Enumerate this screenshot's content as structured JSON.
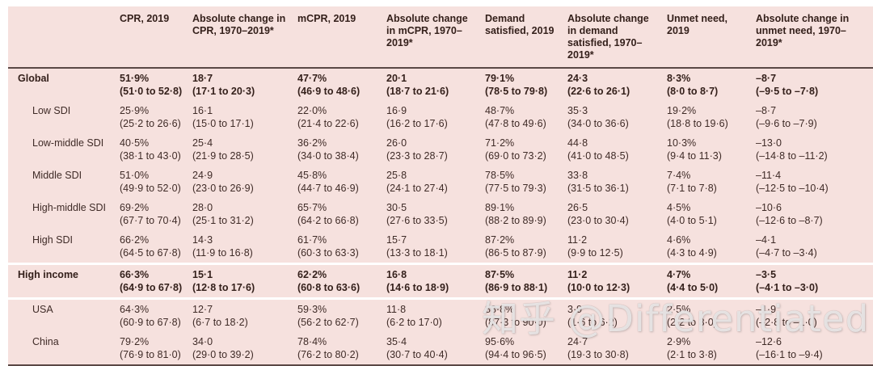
{
  "watermark": "知乎 @Differentiated",
  "table": {
    "columns": [
      {
        "label": ""
      },
      {
        "label": "CPR, 2019"
      },
      {
        "label": "Absolute change in CPR, 1970–2019*"
      },
      {
        "label": "mCPR, 2019"
      },
      {
        "label": "Absolute change in mCPR, 1970–2019*"
      },
      {
        "label": "Demand satisfied, 2019"
      },
      {
        "label": "Absolute change in demand satisfied, 1970–2019*"
      },
      {
        "label": "Unmet need, 2019"
      },
      {
        "label": "Absolute change in unmet need, 1970–2019*"
      }
    ],
    "rows": [
      {
        "label": "Global",
        "bold": true,
        "indent": false,
        "gap_above": false,
        "cells": [
          [
            "51·9%",
            "(51·0 to 52·8)"
          ],
          [
            "18·7",
            "(17·1 to 20·3)"
          ],
          [
            "47·7%",
            "(46·9 to 48·6)"
          ],
          [
            "20·1",
            "(18·7 to 21·6)"
          ],
          [
            "79·1%",
            "(78·5 to 79·8)"
          ],
          [
            "24·3",
            "(22·6 to 26·1)"
          ],
          [
            "8·3%",
            "(8·0 to 8·7)"
          ],
          [
            "–8·7",
            "(–9·5 to –7·8)"
          ]
        ]
      },
      {
        "label": "Low SDI",
        "bold": false,
        "indent": true,
        "gap_above": false,
        "cells": [
          [
            "25·9%",
            "(25·2 to 26·6)"
          ],
          [
            "16·1",
            "(15·0 to 17·1)"
          ],
          [
            "22·0%",
            "(21·4 to 22·6)"
          ],
          [
            "16·9",
            "(16·2 to 17·6)"
          ],
          [
            "48·7%",
            "(47·8 to 49·6)"
          ],
          [
            "35·3",
            "(34·0 to 36·6)"
          ],
          [
            "19·2%",
            "(18·8 to 19·6)"
          ],
          [
            "–8·7",
            "(–9·6 to –7·9)"
          ]
        ]
      },
      {
        "label": "Low-middle SDI",
        "bold": false,
        "indent": true,
        "gap_above": false,
        "cells": [
          [
            "40·5%",
            "(38·1 to 43·0)"
          ],
          [
            "25·4",
            "(21·9 to 28·5)"
          ],
          [
            "36·2%",
            "(34·0 to 38·4)"
          ],
          [
            "26·0",
            "(23·3 to 28·7)"
          ],
          [
            "71·2%",
            "(69·0 to 73·2)"
          ],
          [
            "44·8",
            "(41·0 to 48·5)"
          ],
          [
            "10·3%",
            "(9·4 to 11·3)"
          ],
          [
            "–13·0",
            "(–14·8 to –11·2)"
          ]
        ]
      },
      {
        "label": "Middle SDI",
        "bold": false,
        "indent": true,
        "gap_above": false,
        "cells": [
          [
            "51·0%",
            "(49·9 to 52·0)"
          ],
          [
            "24·9",
            "(23·0 to 26·9)"
          ],
          [
            "45·8%",
            "(44·7 to 46·9)"
          ],
          [
            "25·8",
            "(24·1 to 27·4)"
          ],
          [
            "78·5%",
            "(77·5 to 79·3)"
          ],
          [
            "33·8",
            "(31·5 to 36·1)"
          ],
          [
            "7·4%",
            "(7·1 to 7·8)"
          ],
          [
            "–11·4",
            "(–12·5 to –10·4)"
          ]
        ]
      },
      {
        "label": "High-middle SDI",
        "bold": false,
        "indent": true,
        "gap_above": false,
        "cells": [
          [
            "69·2%",
            "(67·7 to 70·4)"
          ],
          [
            "28·0",
            "(25·1 to 31·2)"
          ],
          [
            "65·7%",
            "(64·2 to 66·8)"
          ],
          [
            "30·5",
            "(27·6 to 33·5)"
          ],
          [
            "89·1%",
            "(88·2 to 89·9)"
          ],
          [
            "26·5",
            "(23·0 to 30·4)"
          ],
          [
            "4·5%",
            "(4·0 to 5·1)"
          ],
          [
            "–10·6",
            "(–12·6 to –8·7)"
          ]
        ]
      },
      {
        "label": "High SDI",
        "bold": false,
        "indent": true,
        "gap_above": false,
        "cells": [
          [
            "66·2%",
            "(64·5 to 67·8)"
          ],
          [
            "14·3",
            "(11·9 to 16·8)"
          ],
          [
            "61·7%",
            "(60·3 to 63·3)"
          ],
          [
            "15·7",
            "(13·3 to 18·1)"
          ],
          [
            "87·2%",
            "(86·5 to 87·9)"
          ],
          [
            "11·2",
            "(9·9 to 12·5)"
          ],
          [
            "4·6%",
            "(4·3 to 4·9)"
          ],
          [
            "–4·1",
            "(–4·7 to –3·4)"
          ]
        ]
      },
      {
        "label": "High income",
        "bold": true,
        "indent": false,
        "gap_above": true,
        "cells": [
          [
            "66·3%",
            "(64·9 to 67·8)"
          ],
          [
            "15·1",
            "(12·8 to 17·6)"
          ],
          [
            "62·2%",
            "(60·8 to 63·6)"
          ],
          [
            "16·8",
            "(14·6 to 18·9)"
          ],
          [
            "87·5%",
            "(86·9 to 88·1)"
          ],
          [
            "11·2",
            "(10·0 to 12·3)"
          ],
          [
            "4·7%",
            "(4·4 to 5·0)"
          ],
          [
            "–3·5",
            "(–4·1 to –3·0)"
          ]
        ]
      },
      {
        "label": "USA",
        "bold": false,
        "indent": true,
        "gap_above": true,
        "cells": [
          [
            "64·3%",
            "(60·9 to 67·8)"
          ],
          [
            "12·7",
            "(6·7 to 18·2)"
          ],
          [
            "59·3%",
            "(56·2 to 62·7)"
          ],
          [
            "11·8",
            "(6·2 to 17·0)"
          ],
          [
            "88·8%",
            "(87·3 to 90·0)"
          ],
          [
            "3·9",
            "(1·6 to 6·2)"
          ],
          [
            "2·5%",
            "(2·2 to 3·0)"
          ],
          [
            "–1·9",
            "(–2·8 to –1·0)"
          ]
        ]
      },
      {
        "label": "China",
        "bold": false,
        "indent": true,
        "gap_above": false,
        "cells": [
          [
            "79·2%",
            "(76·9 to 81·0)"
          ],
          [
            "34·0",
            "(29·0 to 39·2)"
          ],
          [
            "78·4%",
            "(76·2 to 80·2)"
          ],
          [
            "35·4",
            "(30·7 to 40·4)"
          ],
          [
            "95·6%",
            "(94·4 to 96·5)"
          ],
          [
            "24·7",
            "(19·3 to 30·8)"
          ],
          [
            "2·9%",
            "(2·1 to 3·8)"
          ],
          [
            "–12·6",
            "(–16·1 to –9·4)"
          ]
        ]
      }
    ]
  }
}
